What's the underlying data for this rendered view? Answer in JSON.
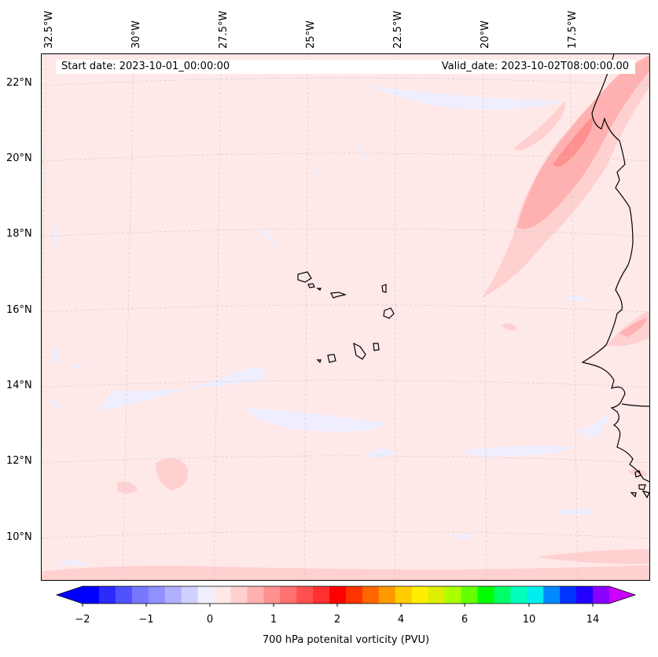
{
  "map": {
    "start_date": "Start date: 2023-10-01_00:00:00",
    "valid_date": "Valid_date: 2023-10-02T08:00:00.00",
    "lon_labels": [
      "32.5°W",
      "30°W",
      "27.5°W",
      "25°W",
      "22.5°W",
      "20°W",
      "17.5°W"
    ],
    "lat_labels": [
      "22°N",
      "20°N",
      "18°N",
      "16°N",
      "14°N",
      "12°N",
      "10°N"
    ],
    "background_color": "#ffe8e8",
    "coastline_color": "#000000"
  },
  "colorbar": {
    "label": "700 hPa potenital vorticity (PVU)",
    "ticks": [
      "−2",
      "−1",
      "0",
      "1",
      "2",
      "4",
      "6",
      "10",
      "14"
    ],
    "colors": [
      "#0000ff",
      "#2b2bff",
      "#5151ff",
      "#7777ff",
      "#9090ff",
      "#b0b0ff",
      "#d0d0ff",
      "#eeeeff",
      "#ffe8e8",
      "#ffd0d0",
      "#ffb0b0",
      "#ff9090",
      "#ff7070",
      "#ff5050",
      "#ff3030",
      "#ff0000",
      "#ff3300",
      "#ff6600",
      "#ff9900",
      "#ffcc00",
      "#ffee00",
      "#ddee00",
      "#aaff00",
      "#66ff00",
      "#00ff00",
      "#00ff66",
      "#00ffbb",
      "#00eeee",
      "#0088ff",
      "#0033ff",
      "#2200ff",
      "#8800ff"
    ],
    "extend_low_color": "#0000ff",
    "extend_high_color": "#cc00ff"
  }
}
